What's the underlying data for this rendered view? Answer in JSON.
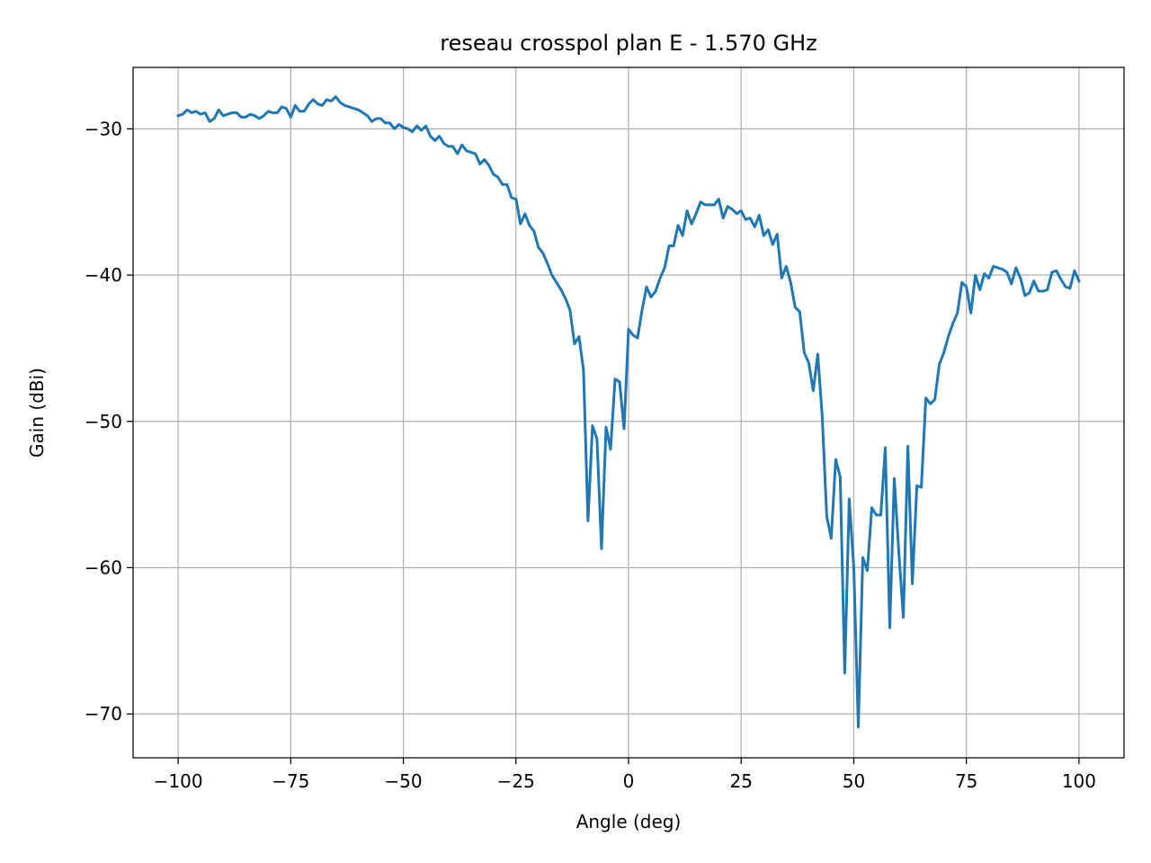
{
  "chart_data": {
    "type": "line",
    "title": "reseau crosspol plan E - 1.570 GHz",
    "xlabel": "Angle (deg)",
    "ylabel": "Gain (dBi)",
    "xlim": [
      -110,
      110
    ],
    "ylim": [
      -73,
      -25.8
    ],
    "xticks": [
      -100,
      -75,
      -50,
      -25,
      0,
      25,
      50,
      75,
      100
    ],
    "yticks": [
      -70,
      -60,
      -50,
      -40,
      -30
    ],
    "xtick_labels": [
      "−100",
      "−75",
      "−50",
      "−25",
      "0",
      "25",
      "50",
      "75",
      "100"
    ],
    "ytick_labels": [
      "−70",
      "−60",
      "−50",
      "−40",
      "−30"
    ],
    "grid": true,
    "colors": {
      "series": "#1f77b4",
      "grid": "#b0b0b0",
      "axes": "#000000"
    },
    "series": [
      {
        "x": [
          -100,
          -99,
          -98,
          -97,
          -96,
          -95,
          -94,
          -93,
          -92,
          -91,
          -90,
          -89,
          -88,
          -87,
          -86,
          -85,
          -84,
          -83,
          -82,
          -81,
          -80,
          -79,
          -78,
          -77,
          -76,
          -75,
          -74,
          -73,
          -72,
          -71,
          -70,
          -69,
          -68,
          -67,
          -66,
          -65,
          -64,
          -63,
          -62,
          -61,
          -60,
          -59,
          -58,
          -57,
          -56,
          -55,
          -54,
          -53,
          -52,
          -51,
          -50,
          -49,
          -48,
          -47,
          -46,
          -45,
          -44,
          -43,
          -42,
          -41,
          -40,
          -39,
          -38,
          -37,
          -36,
          -35,
          -34,
          -33,
          -32,
          -31,
          -30,
          -29,
          -28,
          -27,
          -26,
          -25,
          -24,
          -23,
          -22,
          -21,
          -20,
          -19,
          -18,
          -17,
          -16,
          -15,
          -14,
          -13,
          -12,
          -11,
          -10,
          -9,
          -8,
          -7,
          -6,
          -5,
          -4,
          -3,
          -2,
          -1,
          0,
          1,
          2,
          3,
          4,
          5,
          6,
          7,
          8,
          9,
          10,
          11,
          12,
          13,
          14,
          15,
          16,
          17,
          18,
          19,
          20,
          21,
          22,
          23,
          24,
          25,
          26,
          27,
          28,
          29,
          30,
          31,
          32,
          33,
          34,
          35,
          36,
          37,
          38,
          39,
          40,
          41,
          42,
          43,
          44,
          45,
          46,
          47,
          48,
          49,
          50,
          51,
          52,
          53,
          54,
          55,
          56,
          57,
          58,
          59,
          60,
          61,
          62,
          63,
          64,
          65,
          66,
          67,
          68,
          69,
          70,
          71,
          72,
          73,
          74,
          75,
          76,
          77,
          78,
          79,
          80,
          81,
          82,
          83,
          84,
          85,
          86,
          87,
          88,
          89,
          90,
          91,
          92,
          93,
          94,
          95,
          96,
          97,
          98,
          99,
          100
        ],
        "y": [
          -29.1,
          -29.0,
          -28.7,
          -28.9,
          -28.8,
          -29.0,
          -28.9,
          -29.5,
          -29.3,
          -28.7,
          -29.1,
          -29.0,
          -28.9,
          -28.9,
          -29.2,
          -29.2,
          -29.0,
          -29.1,
          -29.3,
          -29.1,
          -28.8,
          -28.9,
          -28.9,
          -28.5,
          -28.6,
          -29.2,
          -28.4,
          -28.8,
          -28.8,
          -28.3,
          -28.0,
          -28.3,
          -28.4,
          -28.0,
          -28.1,
          -27.8,
          -28.2,
          -28.4,
          -28.5,
          -28.6,
          -28.7,
          -28.9,
          -29.1,
          -29.5,
          -29.3,
          -29.3,
          -29.6,
          -29.6,
          -30.0,
          -29.7,
          -29.9,
          -30.0,
          -30.2,
          -29.8,
          -30.1,
          -29.8,
          -30.5,
          -30.8,
          -30.5,
          -31.0,
          -31.2,
          -31.2,
          -31.7,
          -31.1,
          -31.5,
          -31.6,
          -31.7,
          -32.4,
          -32.1,
          -32.5,
          -33.1,
          -33.3,
          -33.8,
          -33.8,
          -34.7,
          -34.8,
          -36.5,
          -35.8,
          -36.6,
          -37.0,
          -38.1,
          -38.5,
          -39.2,
          -40.0,
          -40.5,
          -41.0,
          -41.6,
          -42.4,
          -44.7,
          -44.2,
          -46.5,
          -56.8,
          -50.3,
          -51.2,
          -58.7,
          -50.4,
          -51.9,
          -47.1,
          -47.3,
          -50.5,
          -43.7,
          -44.1,
          -44.3,
          -42.4,
          -40.8,
          -41.5,
          -41.1,
          -40.2,
          -39.5,
          -38.0,
          -38.0,
          -36.6,
          -37.3,
          -35.6,
          -36.5,
          -35.8,
          -35.0,
          -35.2,
          -35.2,
          -35.2,
          -34.8,
          -36.1,
          -35.3,
          -35.5,
          -35.8,
          -35.6,
          -36.2,
          -36.1,
          -36.7,
          -35.9,
          -37.3,
          -36.9,
          -37.9,
          -37.2,
          -40.2,
          -39.4,
          -40.5,
          -42.2,
          -42.5,
          -45.3,
          -46.0,
          -47.9,
          -45.4,
          -49.7,
          -56.5,
          -58.0,
          -52.6,
          -53.8,
          -67.2,
          -55.3,
          -60.0,
          -70.9,
          -59.3,
          -60.2,
          -55.9,
          -56.4,
          -56.4,
          -51.8,
          -64.1,
          -53.9,
          -58.9,
          -63.4,
          -51.7,
          -61.1,
          -54.4,
          -54.5,
          -48.4,
          -48.8,
          -48.5,
          -46.1,
          -45.3,
          -44.2,
          -43.3,
          -42.6,
          -40.5,
          -40.8,
          -42.6,
          -40.0,
          -41.0,
          -39.9,
          -40.2,
          -39.4,
          -39.5,
          -39.6,
          -39.8,
          -40.6,
          -39.5,
          -40.2,
          -41.4,
          -41.2,
          -40.4,
          -41.1,
          -41.1,
          -41.0,
          -39.8,
          -39.7,
          -40.3,
          -40.8,
          -40.9,
          -39.7,
          -40.4
        ]
      }
    ]
  }
}
